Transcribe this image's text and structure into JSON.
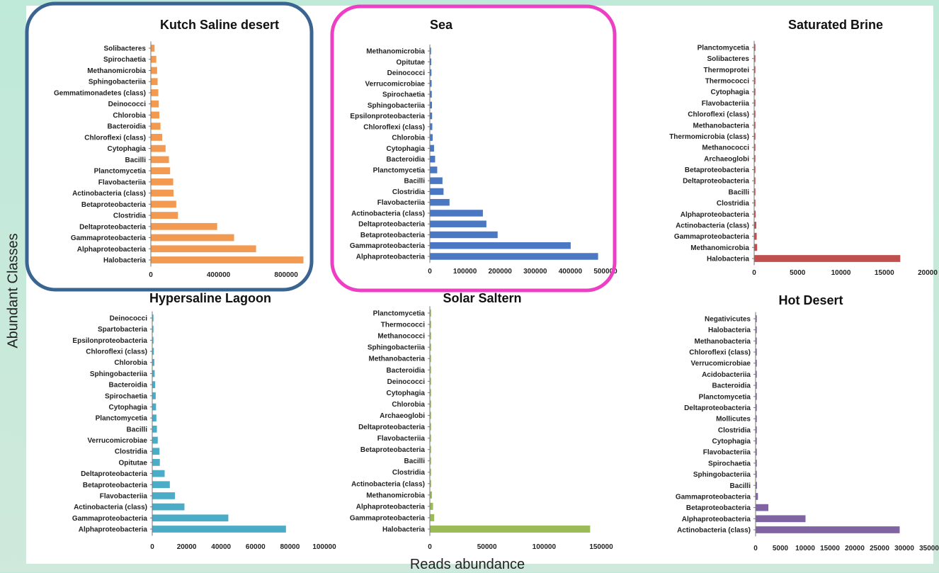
{
  "figure": {
    "ylabel": "Abundant Classes",
    "xlabel": "Reads abundance",
    "highlight_colors": [
      "#3a6592",
      "#ee3fc4"
    ]
  },
  "chart_data": [
    {
      "type": "bar",
      "orientation": "horizontal",
      "title": "Kutch Saline desert",
      "color": "#f29a52",
      "categories": [
        "Solibacteres",
        "Spirochaetia",
        "Methanomicrobia",
        "Sphingobacteriia",
        "Gemmatimonadetes (class)",
        "Deinococci",
        "Chlorobia",
        "Bacteroidia",
        "Chloroflexi (class)",
        "Cytophagia",
        "Bacilli",
        "Planctomycetia",
        "Flavobacteriia",
        "Actinobacteria (class)",
        "Betaproteobacteria",
        "Clostridia",
        "Deltaproteobacteria",
        "Gammaproteobacteria",
        "Alphaproteobacteria",
        "Halobacteria"
      ],
      "values": [
        20000,
        30000,
        35000,
        38000,
        42000,
        45000,
        48000,
        55000,
        65000,
        85000,
        105000,
        112000,
        130000,
        132000,
        148000,
        158000,
        390000,
        490000,
        620000,
        900000
      ],
      "xlim": [
        0,
        900000
      ],
      "ticks": [
        0,
        400000,
        800000
      ],
      "tick_labels": [
        "0",
        "400000",
        "800000"
      ],
      "highlight": "#3a6592"
    },
    {
      "type": "bar",
      "orientation": "horizontal",
      "title": "Sea",
      "color": "#4a78c2",
      "categories": [
        "Methanomicrobia",
        "Opitutae",
        "Deinococci",
        "Verrucomicrobiae",
        "Spirochaetia",
        "Sphingobacteriia",
        "Epsilonproteobacteria",
        "Chloroflexi (class)",
        "Chlorobia",
        "Cytophagia",
        "Bacteroidia",
        "Planctomycetia",
        "Bacilli",
        "Clostridia",
        "Flavobacteriia",
        "Actinobacteria (class)",
        "Deltaproteobacteria",
        "Betaproteobacteria",
        "Gammaproteobacteria",
        "Alphaproteobacteria"
      ],
      "values": [
        2000,
        3000,
        3500,
        4000,
        4500,
        5000,
        5500,
        6000,
        7000,
        11000,
        14000,
        20000,
        35000,
        38000,
        55000,
        150000,
        160000,
        192000,
        400000,
        478000
      ],
      "xlim": [
        0,
        500000
      ],
      "ticks": [
        0,
        100000,
        200000,
        300000,
        400000,
        500000
      ],
      "tick_labels": [
        "0",
        "100000",
        "200000",
        "300000",
        "400000",
        "500000"
      ],
      "highlight": "#ee3fc4"
    },
    {
      "type": "bar",
      "orientation": "horizontal",
      "title": "Saturated Brine",
      "color": "#c0504d",
      "categories": [
        "Planctomycetia",
        "Solibacteres",
        "Thermoprotei",
        "Thermococci",
        "Cytophagia",
        "Flavobacteriia",
        "Chloroflexi (class)",
        "Methanobacteria",
        "Thermomicrobia (class)",
        "Methanococci",
        "Archaeoglobi",
        "Betaproteobacteria",
        "Deltaproteobacteria",
        "Bacilli",
        "Clostridia",
        "Alphaproteobacteria",
        "Actinobacteria (class)",
        "Gammaproteobacteria",
        "Methanomicrobia",
        "Halobacteria"
      ],
      "values": [
        8,
        9,
        10,
        12,
        14,
        16,
        20,
        24,
        28,
        32,
        40,
        50,
        60,
        80,
        100,
        120,
        200,
        250,
        300,
        16800
      ],
      "xlim": [
        0,
        20000
      ],
      "ticks": [
        0,
        5000,
        10000,
        15000,
        20000
      ],
      "tick_labels": [
        "0",
        "5000",
        "10000",
        "15000",
        "20000"
      ]
    },
    {
      "type": "bar",
      "orientation": "horizontal",
      "title": "Hypersaline Lagoon",
      "color": "#4aacc6",
      "categories": [
        "Deinococci",
        "Spartobacteria",
        "Epsilonproteobacteria",
        "Chloroflexi (class)",
        "Chlorobia",
        "Sphingobacteriia",
        "Bacteroidia",
        "Spirochaetia",
        "Cytophagia",
        "Planctomycetia",
        "Bacilli",
        "Verrucomicrobiae",
        "Clostridia",
        "Opitutae",
        "Deltaproteobacteria",
        "Betaproteobacteria",
        "Flavobacteriia",
        "Actinobacteria (class)",
        "Gammaproteobacteria",
        "Alphaproteobacteria"
      ],
      "values": [
        300,
        400,
        500,
        700,
        1000,
        1200,
        1500,
        1800,
        2000,
        2200,
        2500,
        3000,
        4000,
        4200,
        7000,
        10000,
        13000,
        18500,
        44000,
        77500
      ],
      "xlim": [
        0,
        100000
      ],
      "ticks": [
        0,
        20000,
        40000,
        60000,
        80000,
        100000
      ],
      "tick_labels": [
        "0",
        "20000",
        "40000",
        "60000",
        "80000",
        "100000"
      ]
    },
    {
      "type": "bar",
      "orientation": "horizontal",
      "title": "Solar Saltern",
      "color": "#9bbb59",
      "categories": [
        "Planctomycetia",
        "Thermococci",
        "Methanococci",
        "Sphingobacteriia",
        "Methanobacteria",
        "Bacteroidia",
        "Deinococci",
        "Cytophagia",
        "Chlorobia",
        "Archaeoglobi",
        "Deltaproteobacteria",
        "Flavobacteriia",
        "Betaproteobacteria",
        "Bacilli",
        "Clostridia",
        "Actinobacteria (class)",
        "Methanomicrobia",
        "Alphaproteobacteria",
        "Gammaproteobacteria",
        "Halobacteria"
      ],
      "values": [
        50,
        60,
        70,
        80,
        100,
        120,
        140,
        160,
        180,
        200,
        250,
        300,
        400,
        500,
        600,
        800,
        1500,
        2500,
        3500,
        140000
      ],
      "xlim": [
        0,
        150000
      ],
      "ticks": [
        0,
        50000,
        100000,
        150000
      ],
      "tick_labels": [
        "0",
        "50000",
        "100000",
        "150000"
      ]
    },
    {
      "type": "bar",
      "orientation": "horizontal",
      "title": "Hot Desert",
      "color": "#8064a2",
      "categories": [
        "Negativicutes",
        "Halobacteria",
        "Methanobacteria",
        "Chloroflexi (class)",
        "Verrucomicrobiae",
        "Acidobacteriia",
        "Bacteroidia",
        "Planctomycetia",
        "Deltaproteobacteria",
        "Mollicutes",
        "Clostridia",
        "Cytophagia",
        "Flavobacteriia",
        "Spirochaetia",
        "Sphingobacteriia",
        "Bacilli",
        "Gammaproteobacteria",
        "Betaproteobacteria",
        "Alphaproteobacteria",
        "Actinobacteria (class)"
      ],
      "values": [
        10,
        12,
        14,
        16,
        18,
        20,
        25,
        30,
        35,
        40,
        50,
        60,
        70,
        80,
        100,
        200,
        400,
        2500,
        10000,
        29000
      ],
      "xlim": [
        0,
        35000
      ],
      "ticks": [
        0,
        5000,
        10000,
        15000,
        20000,
        25000,
        30000,
        35000
      ],
      "tick_labels": [
        "0",
        "5000",
        "10000",
        "15000",
        "20000",
        "25000",
        "30000",
        "35000"
      ]
    }
  ]
}
